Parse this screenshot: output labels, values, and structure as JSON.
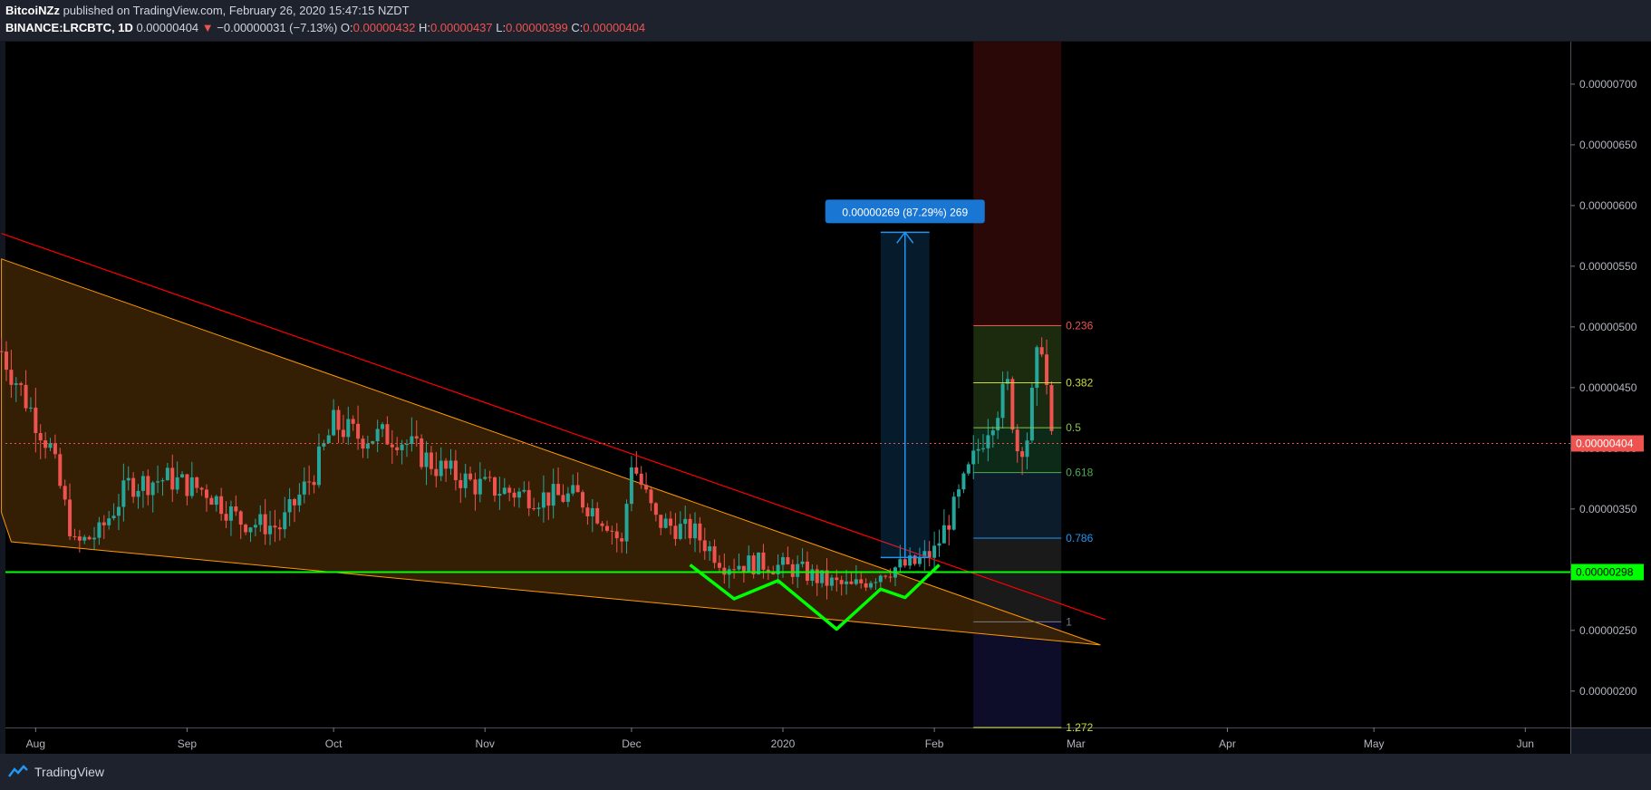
{
  "header": {
    "author": "BitcoiNZz",
    "published_text": "published on TradingView.com, February 26, 2020 15:47:15 NZDT",
    "symbol": "BINANCE:LRCBTC, 1D",
    "last": "0.00000404",
    "change": "−0.00000031 (−7.13%)",
    "o_label": "O:",
    "o": "0.00000432",
    "h_label": "H:",
    "h": "0.00000437",
    "l_label": "L:",
    "l": "0.00000399",
    "c_label": "C:",
    "c": "0.00000404"
  },
  "footer": {
    "brand": "TradingView"
  },
  "colors": {
    "background": "#000000",
    "up": "#26a69a",
    "down": "#ef5350",
    "support": "#00ff00",
    "wedge_fill": "#3d2505",
    "wedge_line": "#ff9800",
    "trendline": "#ff0000",
    "measure": "#2196f3"
  },
  "chart_data": {
    "type": "candlestick",
    "timeframe": "1D",
    "x_tick_labels": [
      "Aug",
      "Sep",
      "Oct",
      "Nov",
      "Dec",
      "2020",
      "Feb",
      "Mar",
      "Apr",
      "May",
      "Jun"
    ],
    "x_ticks": [
      "2019-08-01",
      "2019-09-01",
      "2019-10-01",
      "2019-11-01",
      "2019-12-01",
      "2020-01-01",
      "2020-02-01",
      "2020-03-01",
      "2020-04-01",
      "2020-05-01",
      "2020-06-01"
    ],
    "y_ticks": [
      "0.00000200",
      "0.00000250",
      "0.00000300",
      "0.00000350",
      "0.00000400",
      "0.00000450",
      "0.00000500",
      "0.00000550",
      "0.00000600",
      "0.00000650",
      "0.00000700"
    ],
    "ylim": [
      1.7e-06,
      7.35e-06
    ],
    "price_path": [
      [
        "2019-07-25",
        4.8e-06
      ],
      [
        "2019-07-30",
        4.4e-06
      ],
      [
        "2019-08-04",
        4e-06
      ],
      [
        "2019-08-09",
        3.2e-06
      ],
      [
        "2019-08-14",
        3.3e-06
      ],
      [
        "2019-08-20",
        3.7e-06
      ],
      [
        "2019-08-28",
        3.75e-06
      ],
      [
        "2019-09-05",
        3.65e-06
      ],
      [
        "2019-09-12",
        3.4e-06
      ],
      [
        "2019-09-20",
        3.35e-06
      ],
      [
        "2019-09-27",
        3.8e-06
      ],
      [
        "2019-10-01",
        4.2e-06
      ],
      [
        "2019-10-06",
        4.1e-06
      ],
      [
        "2019-10-14",
        4.1e-06
      ],
      [
        "2019-10-22",
        3.85e-06
      ],
      [
        "2019-10-30",
        3.7e-06
      ],
      [
        "2019-11-05",
        3.65e-06
      ],
      [
        "2019-11-12",
        3.6e-06
      ],
      [
        "2019-11-20",
        3.6e-06
      ],
      [
        "2019-11-26",
        3.4e-06
      ],
      [
        "2019-11-29",
        3.2e-06
      ],
      [
        "2019-12-01",
        3.9e-06
      ],
      [
        "2019-12-06",
        3.4e-06
      ],
      [
        "2019-12-14",
        3.3e-06
      ],
      [
        "2019-12-20",
        3.05e-06
      ],
      [
        "2019-12-28",
        3.05e-06
      ],
      [
        "2020-01-04",
        3e-06
      ],
      [
        "2020-01-10",
        2.9e-06
      ],
      [
        "2020-01-15",
        2.85e-06
      ],
      [
        "2020-01-22",
        3e-06
      ],
      [
        "2020-01-28",
        3.05e-06
      ],
      [
        "2020-02-01",
        3.15e-06
      ],
      [
        "2020-02-05",
        3.5e-06
      ],
      [
        "2020-02-08",
        3.8e-06
      ],
      [
        "2020-02-12",
        4.2e-06
      ],
      [
        "2020-02-16",
        4.5e-06
      ],
      [
        "2020-02-18",
        4e-06
      ],
      [
        "2020-02-20",
        4.1e-06
      ],
      [
        "2020-02-22",
        4.7e-06
      ],
      [
        "2020-02-23",
        4.9e-06
      ],
      [
        "2020-02-24",
        4.5e-06
      ],
      [
        "2020-02-25",
        4.04e-06
      ]
    ],
    "last_price": {
      "value": 4.04e-06,
      "label": "0.00000404"
    },
    "support_line": {
      "value": 2.98e-06,
      "label": "0.00000298"
    },
    "inverse_head_and_shoulders": [
      [
        "2019-12-13",
        3.04e-06
      ],
      [
        "2019-12-22",
        2.76e-06
      ],
      [
        "2019-12-31",
        2.91e-06
      ],
      [
        "2020-01-12",
        2.51e-06
      ],
      [
        "2020-01-21",
        2.84e-06
      ],
      [
        "2020-01-26",
        2.77e-06
      ],
      [
        "2020-02-02",
        3.04e-06
      ]
    ],
    "falling_wedge": {
      "upper": [
        [
          "2019-07-25",
          5.56e-06
        ],
        [
          "2020-03-06",
          2.38e-06
        ]
      ],
      "lower": [
        [
          "2019-07-25",
          3.47e-06
        ],
        [
          "2019-07-27",
          3.23e-06
        ],
        [
          "2020-03-06",
          2.38e-06
        ]
      ]
    },
    "trendline": [
      [
        "2019-07-25",
        5.77e-06
      ],
      [
        "2020-03-07",
        2.59e-06
      ]
    ],
    "measure_box": {
      "from": "2020-01-21",
      "to": "2020-01-31",
      "bottom": 3.1e-06,
      "top": 5.78e-06,
      "label": "0.00000269 (87.29%) 269"
    },
    "fibonacci": {
      "from": "2020-02-09",
      "to": "2020-02-27",
      "levels": [
        {
          "label": "0.236",
          "value": 5.01e-06
        },
        {
          "label": "0.382",
          "value": 4.54e-06
        },
        {
          "label": "0.5",
          "value": 4.17e-06
        },
        {
          "label": "0.618",
          "value": 3.8e-06
        },
        {
          "label": "0.786",
          "value": 3.26e-06
        },
        {
          "label": "1",
          "value": 2.57e-06
        },
        {
          "label": "1.272",
          "value": 1.7e-06
        }
      ]
    }
  }
}
